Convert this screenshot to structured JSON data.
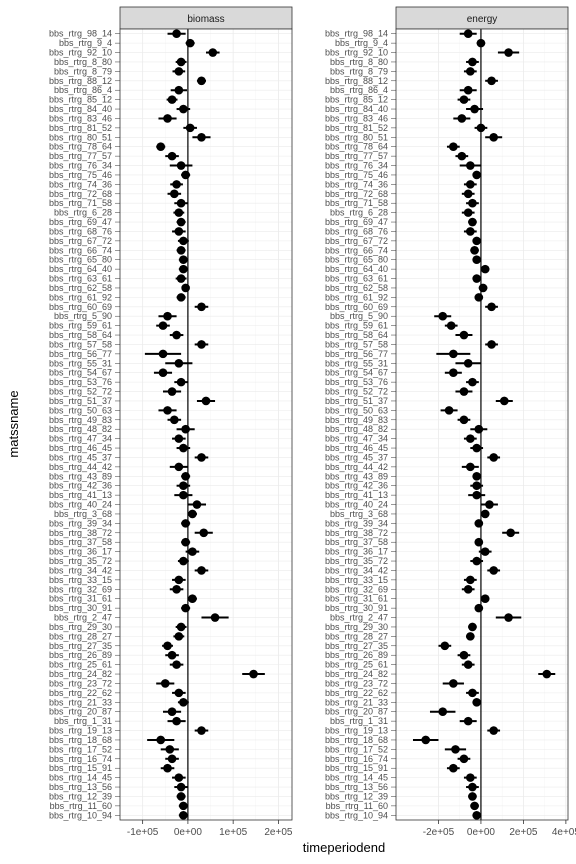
{
  "chart_data": {
    "type": "scatter",
    "subtype": "point-range (dot with horizontal interval) faceted",
    "xlabel": "timeperiodend",
    "ylabel": "matssname",
    "facets": [
      {
        "name": "biomass",
        "x_ticks": [
          -100000,
          0,
          100000,
          200000
        ],
        "x_tick_labels": [
          "-1e+05",
          "0e+00",
          "1e+05",
          "2e+05"
        ],
        "xlim": [
          -150000,
          230000
        ]
      },
      {
        "name": "energy",
        "x_ticks": [
          -200000,
          0,
          200000,
          400000
        ],
        "x_tick_labels": [
          "-2e+05",
          "0e+00",
          "2e+05",
          "4e+05"
        ],
        "xlim": [
          -400000,
          410000
        ]
      }
    ],
    "y_tick_labels": [
      "bbs_rtrg_98_14",
      "bbs_rtrg_9_4",
      "bbs_rtrg_92_10",
      "bbs_rtrg_8_80",
      "bbs_rtrg_8_79",
      "bbs_rtrg_88_12",
      "bbs_rtrg_86_4",
      "bbs_rtrg_85_12",
      "bbs_rtrg_84_40",
      "bbs_rtrg_83_46",
      "bbs_rtrg_81_52",
      "bbs_rtrg_80_51",
      "bbs_rtrg_78_64",
      "bbs_rtrg_77_57",
      "bbs_rtrg_76_34",
      "bbs_rtrg_75_46",
      "bbs_rtrg_74_36",
      "bbs_rtrg_72_68",
      "bbs_rtrg_71_58",
      "bbs_rtrg_6_28",
      "bbs_rtrg_69_47",
      "bbs_rtrg_68_76",
      "bbs_rtrg_67_72",
      "bbs_rtrg_66_74",
      "bbs_rtrg_65_80",
      "bbs_rtrg_64_40",
      "bbs_rtrg_63_61",
      "bbs_rtrg_62_58",
      "bbs_rtrg_61_92",
      "bbs_rtrg_60_69",
      "bbs_rtrg_5_90",
      "bbs_rtrg_59_61",
      "bbs_rtrg_58_64",
      "bbs_rtrg_57_58",
      "bbs_rtrg_56_77",
      "bbs_rtrg_55_31",
      "bbs_rtrg_54_67",
      "bbs_rtrg_53_76",
      "bbs_rtrg_52_72",
      "bbs_rtrg_51_37",
      "bbs_rtrg_50_63",
      "bbs_rtrg_49_83",
      "bbs_rtrg_48_82",
      "bbs_rtrg_47_34",
      "bbs_rtrg_46_45",
      "bbs_rtrg_45_37",
      "bbs_rtrg_44_42",
      "bbs_rtrg_43_89",
      "bbs_rtrg_42_36",
      "bbs_rtrg_41_13",
      "bbs_rtrg_40_24",
      "bbs_rtrg_3_68",
      "bbs_rtrg_39_34",
      "bbs_rtrg_38_72",
      "bbs_rtrg_37_58",
      "bbs_rtrg_36_17",
      "bbs_rtrg_35_72",
      "bbs_rtrg_34_42",
      "bbs_rtrg_33_15",
      "bbs_rtrg_32_69",
      "bbs_rtrg_31_61",
      "bbs_rtrg_30_91",
      "bbs_rtrg_2_47",
      "bbs_rtrg_29_30",
      "bbs_rtrg_28_27",
      "bbs_rtrg_27_35",
      "bbs_rtrg_26_89",
      "bbs_rtrg_25_61",
      "bbs_rtrg_24_82",
      "bbs_rtrg_23_72",
      "bbs_rtrg_22_62",
      "bbs_rtrg_21_33",
      "bbs_rtrg_20_87",
      "bbs_rtrg_1_31",
      "bbs_rtrg_19_13",
      "bbs_rtrg_18_68",
      "bbs_rtrg_17_52",
      "bbs_rtrg_16_74",
      "bbs_rtrg_15_91",
      "bbs_rtrg_14_45",
      "bbs_rtrg_13_56",
      "bbs_rtrg_12_39",
      "bbs_rtrg_11_60",
      "bbs_rtrg_10_94"
    ],
    "series_note": "Values are approximate point estimates read from the plot; intervals shown as horizontal segments.",
    "biomass_points": [
      [
        -25000,
        20000
      ],
      [
        5000,
        10000
      ],
      [
        55000,
        15000
      ],
      [
        -15000,
        12000
      ],
      [
        -20000,
        14000
      ],
      [
        30000,
        10000
      ],
      [
        -20000,
        18000
      ],
      [
        -35000,
        12000
      ],
      [
        -10000,
        15000
      ],
      [
        -45000,
        20000
      ],
      [
        5000,
        15000
      ],
      [
        30000,
        20000
      ],
      [
        -60000,
        10000
      ],
      [
        -35000,
        15000
      ],
      [
        -15000,
        25000
      ],
      [
        -5000,
        10000
      ],
      [
        -25000,
        14000
      ],
      [
        -30000,
        15000
      ],
      [
        -15000,
        15000
      ],
      [
        -20000,
        12000
      ],
      [
        -15000,
        10000
      ],
      [
        -20000,
        15000
      ],
      [
        -10000,
        12000
      ],
      [
        -15000,
        10000
      ],
      [
        -10000,
        10000
      ],
      [
        -10000,
        10000
      ],
      [
        -15000,
        12000
      ],
      [
        -5000,
        8000
      ],
      [
        -15000,
        10000
      ],
      [
        30000,
        15000
      ],
      [
        -45000,
        20000
      ],
      [
        -55000,
        15000
      ],
      [
        -25000,
        15000
      ],
      [
        30000,
        15000
      ],
      [
        -55000,
        40000
      ],
      [
        -20000,
        30000
      ],
      [
        -55000,
        20000
      ],
      [
        -15000,
        15000
      ],
      [
        -35000,
        20000
      ],
      [
        40000,
        20000
      ],
      [
        -45000,
        20000
      ],
      [
        -30000,
        15000
      ],
      [
        -5000,
        20000
      ],
      [
        -20000,
        15000
      ],
      [
        -10000,
        15000
      ],
      [
        30000,
        15000
      ],
      [
        -20000,
        20000
      ],
      [
        -5000,
        10000
      ],
      [
        -10000,
        15000
      ],
      [
        -10000,
        20000
      ],
      [
        20000,
        20000
      ],
      [
        10000,
        10000
      ],
      [
        -5000,
        10000
      ],
      [
        35000,
        20000
      ],
      [
        -5000,
        10000
      ],
      [
        10000,
        15000
      ],
      [
        -10000,
        12000
      ],
      [
        30000,
        15000
      ],
      [
        -20000,
        15000
      ],
      [
        -25000,
        15000
      ],
      [
        10000,
        10000
      ],
      [
        -5000,
        10000
      ],
      [
        60000,
        30000
      ],
      [
        -15000,
        12000
      ],
      [
        -20000,
        12000
      ],
      [
        -45000,
        12000
      ],
      [
        -35000,
        15000
      ],
      [
        -25000,
        15000
      ],
      [
        145000,
        25000
      ],
      [
        -50000,
        20000
      ],
      [
        -20000,
        15000
      ],
      [
        -10000,
        12000
      ],
      [
        -35000,
        20000
      ],
      [
        -25000,
        20000
      ],
      [
        30000,
        15000
      ],
      [
        -60000,
        30000
      ],
      [
        -40000,
        20000
      ],
      [
        -35000,
        15000
      ],
      [
        -45000,
        15000
      ],
      [
        -20000,
        15000
      ],
      [
        -15000,
        15000
      ],
      [
        -15000,
        10000
      ],
      [
        -10000,
        10000
      ],
      [
        -10000,
        10000
      ]
    ],
    "energy_points": [
      [
        -60000,
        40000
      ],
      [
        0,
        20000
      ],
      [
        130000,
        50000
      ],
      [
        -40000,
        30000
      ],
      [
        -50000,
        30000
      ],
      [
        50000,
        30000
      ],
      [
        -60000,
        40000
      ],
      [
        -80000,
        30000
      ],
      [
        -30000,
        40000
      ],
      [
        -90000,
        40000
      ],
      [
        0,
        30000
      ],
      [
        60000,
        40000
      ],
      [
        -130000,
        30000
      ],
      [
        -90000,
        30000
      ],
      [
        -50000,
        50000
      ],
      [
        -20000,
        20000
      ],
      [
        -50000,
        30000
      ],
      [
        -60000,
        30000
      ],
      [
        -40000,
        30000
      ],
      [
        -60000,
        30000
      ],
      [
        -40000,
        20000
      ],
      [
        -50000,
        30000
      ],
      [
        -20000,
        20000
      ],
      [
        -30000,
        20000
      ],
      [
        -20000,
        20000
      ],
      [
        20000,
        20000
      ],
      [
        -20000,
        20000
      ],
      [
        10000,
        20000
      ],
      [
        -10000,
        20000
      ],
      [
        50000,
        30000
      ],
      [
        -180000,
        40000
      ],
      [
        -140000,
        30000
      ],
      [
        -80000,
        40000
      ],
      [
        50000,
        30000
      ],
      [
        -130000,
        80000
      ],
      [
        -60000,
        60000
      ],
      [
        -130000,
        40000
      ],
      [
        -40000,
        30000
      ],
      [
        -80000,
        40000
      ],
      [
        110000,
        40000
      ],
      [
        -150000,
        40000
      ],
      [
        -80000,
        30000
      ],
      [
        -10000,
        40000
      ],
      [
        -50000,
        30000
      ],
      [
        -20000,
        30000
      ],
      [
        60000,
        30000
      ],
      [
        -50000,
        40000
      ],
      [
        -20000,
        20000
      ],
      [
        -20000,
        30000
      ],
      [
        -20000,
        40000
      ],
      [
        40000,
        40000
      ],
      [
        20000,
        20000
      ],
      [
        -10000,
        20000
      ],
      [
        140000,
        40000
      ],
      [
        -10000,
        20000
      ],
      [
        20000,
        30000
      ],
      [
        -20000,
        30000
      ],
      [
        60000,
        30000
      ],
      [
        -50000,
        30000
      ],
      [
        -60000,
        30000
      ],
      [
        20000,
        20000
      ],
      [
        -10000,
        20000
      ],
      [
        130000,
        60000
      ],
      [
        -40000,
        20000
      ],
      [
        -50000,
        20000
      ],
      [
        -170000,
        30000
      ],
      [
        -80000,
        30000
      ],
      [
        -60000,
        30000
      ],
      [
        310000,
        40000
      ],
      [
        -130000,
        50000
      ],
      [
        -40000,
        30000
      ],
      [
        -20000,
        20000
      ],
      [
        -180000,
        60000
      ],
      [
        -60000,
        40000
      ],
      [
        60000,
        30000
      ],
      [
        -260000,
        60000
      ],
      [
        -120000,
        50000
      ],
      [
        -80000,
        30000
      ],
      [
        -130000,
        30000
      ],
      [
        -50000,
        30000
      ],
      [
        -40000,
        30000
      ],
      [
        -40000,
        20000
      ],
      [
        -30000,
        20000
      ],
      [
        -20000,
        20000
      ]
    ]
  }
}
